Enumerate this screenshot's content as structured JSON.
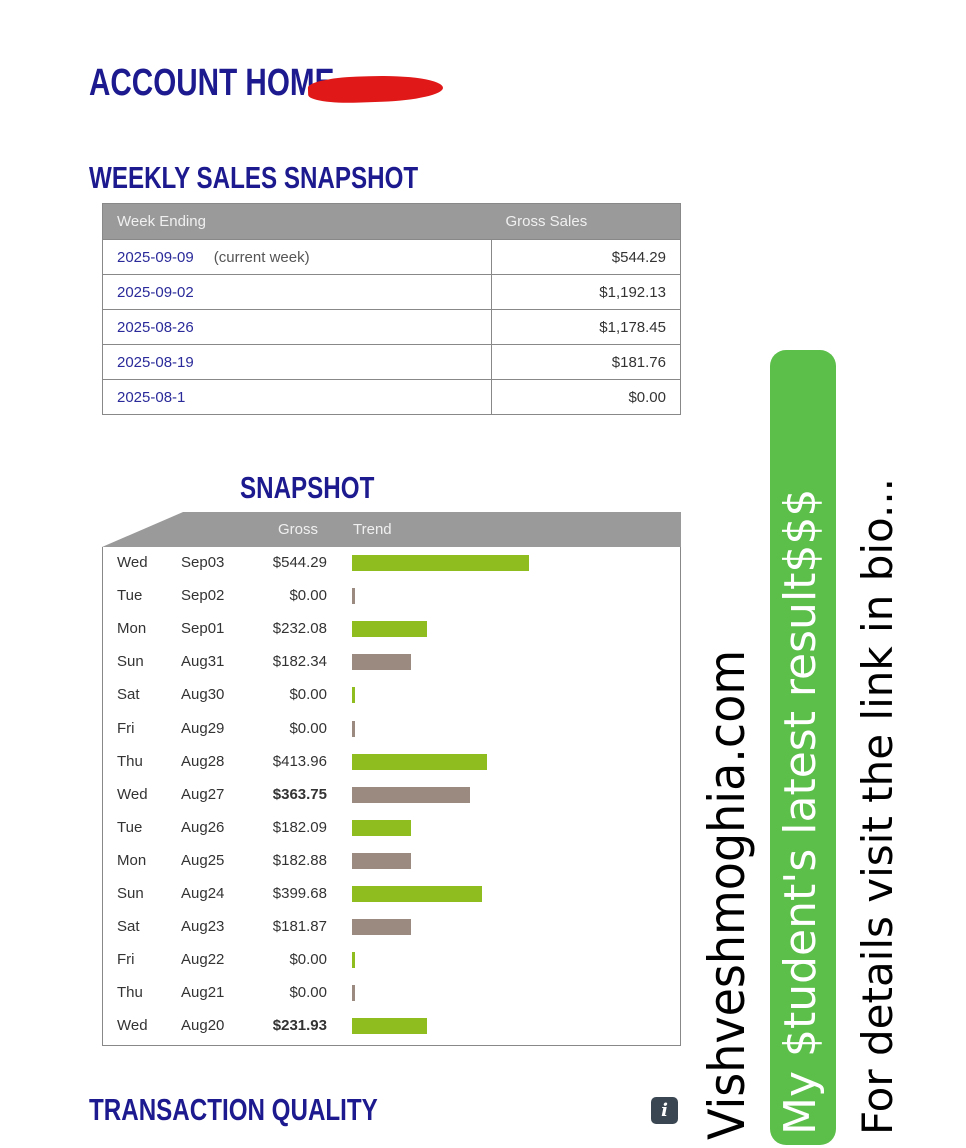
{
  "page_title": "ACCOUNT HOME",
  "weekly": {
    "title": "WEEKLY SALES SNAPSHOT",
    "columns": [
      "Week Ending",
      "Gross Sales"
    ],
    "rows": [
      {
        "week": "2025-09-09",
        "note": "(current week)",
        "gross": "$544.29"
      },
      {
        "week": "2025-09-02",
        "note": "",
        "gross": "$1,192.13"
      },
      {
        "week": "2025-08-26",
        "note": "",
        "gross": "$1,178.45"
      },
      {
        "week": "2025-08-19",
        "note": "",
        "gross": "$181.76"
      },
      {
        "week": "2025-08-1",
        "note": "",
        "gross": "$0.00"
      }
    ]
  },
  "daily": {
    "title": "SNAPSHOT",
    "columns": [
      "Gross",
      "Trend"
    ],
    "colors": {
      "green": "#8fbc1e",
      "brown": "#9a8a7f"
    },
    "rows": [
      {
        "dow": "Wed",
        "date": "Sep03",
        "gross": "$544.29",
        "value": 544.29,
        "bold": false
      },
      {
        "dow": "Tue",
        "date": "Sep02",
        "gross": "$0.00",
        "value": 0,
        "bold": false
      },
      {
        "dow": "Mon",
        "date": "Sep01",
        "gross": "$232.08",
        "value": 232.08,
        "bold": false
      },
      {
        "dow": "Sun",
        "date": "Aug31",
        "gross": "$182.34",
        "value": 182.34,
        "bold": false
      },
      {
        "dow": "Sat",
        "date": "Aug30",
        "gross": "$0.00",
        "value": 0,
        "bold": false
      },
      {
        "dow": "Fri",
        "date": "Aug29",
        "gross": "$0.00",
        "value": 0,
        "bold": false
      },
      {
        "dow": "Thu",
        "date": "Aug28",
        "gross": "$413.96",
        "value": 413.96,
        "bold": false
      },
      {
        "dow": "Wed",
        "date": "Aug27",
        "gross": "$363.75",
        "value": 363.75,
        "bold": true
      },
      {
        "dow": "Tue",
        "date": "Aug26",
        "gross": "$182.09",
        "value": 182.09,
        "bold": false
      },
      {
        "dow": "Mon",
        "date": "Aug25",
        "gross": "$182.88",
        "value": 182.88,
        "bold": false
      },
      {
        "dow": "Sun",
        "date": "Aug24",
        "gross": "$399.68",
        "value": 399.68,
        "bold": false
      },
      {
        "dow": "Sat",
        "date": "Aug23",
        "gross": "$181.87",
        "value": 181.87,
        "bold": false
      },
      {
        "dow": "Fri",
        "date": "Aug22",
        "gross": "$0.00",
        "value": 0,
        "bold": false
      },
      {
        "dow": "Thu",
        "date": "Aug21",
        "gross": "$0.00",
        "value": 0,
        "bold": false
      },
      {
        "dow": "Wed",
        "date": "Aug20",
        "gross": "$231.93",
        "value": 231.93,
        "bold": true
      }
    ]
  },
  "transaction_quality": {
    "title": "TRANSACTION QUALITY",
    "icon": "info-icon"
  },
  "overlays": {
    "watermark": "Vishveshmoghia.com",
    "banner": "My $tudent's latest result$$$",
    "caption": "For details visit the link in bio..."
  }
}
